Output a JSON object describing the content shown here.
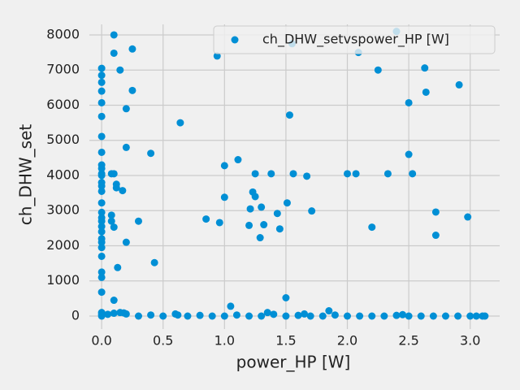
{
  "chart_data": {
    "type": "scatter",
    "xlabel": "power_HP [W]",
    "ylabel": "ch_DHW_set",
    "legend": "upper right",
    "grid": true,
    "xlim": [
      -0.1,
      3.24
    ],
    "ylim": [
      -370,
      8300
    ],
    "xticks": [
      {
        "value": 0,
        "label": "0.0"
      },
      0.5,
      {
        "value": 1,
        "label": "1.0"
      },
      1.5,
      {
        "value": 2,
        "label": "2.0"
      },
      2.5,
      {
        "value": 3,
        "label": "3.0"
      }
    ],
    "yticks": [
      0,
      1000,
      2000,
      3000,
      4000,
      5000,
      6000,
      7000,
      8000
    ],
    "series": [
      {
        "name": "ch_DHW_setvspower_HP [W]",
        "color": "#008fd5",
        "x": [
          0,
          0,
          0,
          0,
          0,
          0,
          0,
          0,
          0,
          0,
          0,
          0,
          0,
          0,
          0,
          0,
          0,
          0,
          0,
          0,
          0,
          0,
          0,
          0,
          0,
          0,
          0,
          0,
          0,
          0,
          0,
          0.1,
          0.1,
          0.15,
          0.25,
          0.25,
          0.2,
          0.2,
          0.1,
          0.08,
          0.12,
          0.12,
          0.17,
          0.08,
          0.08,
          0.1,
          0.2,
          0.3,
          0.13,
          0.43,
          0.1,
          0.4,
          0.64,
          0.94,
          1.0,
          1.11,
          1.0,
          0.85,
          0.96,
          1.05,
          1.21,
          1.23,
          1.25,
          1.25,
          1.3,
          1.32,
          1.2,
          1.29,
          1.38,
          1.43,
          1.45,
          1.51,
          1.53,
          1.56,
          1.55,
          1.67,
          1.71,
          1.5,
          2.0,
          2.07,
          2.09,
          2.25,
          2.2,
          2.33,
          2.4,
          2.5,
          2.5,
          2.53,
          2.63,
          2.64,
          2.72,
          2.72,
          2.91,
          2.98,
          1.85,
          0.05,
          0.1,
          0.15,
          0.2,
          0.3,
          0.4,
          0.5,
          0.6,
          0.7,
          0.8,
          0.9,
          1.0,
          1.1,
          1.2,
          1.3,
          1.4,
          1.5,
          1.6,
          1.7,
          1.8,
          1.9,
          2.0,
          2.1,
          2.2,
          2.3,
          2.4,
          2.5,
          2.6,
          2.7,
          2.8,
          2.9,
          3.0,
          3.05,
          3.1,
          3.12,
          1.35,
          1.65,
          2.45,
          0.62,
          0.18
        ],
        "values": [
          7050,
          6850,
          6650,
          6400,
          6070,
          5680,
          5110,
          4660,
          4300,
          4200,
          4050,
          4000,
          3800,
          3700,
          3550,
          3220,
          2950,
          2800,
          2700,
          2550,
          2400,
          2200,
          2100,
          1950,
          1700,
          1250,
          1100,
          680,
          100,
          50,
          0,
          8000,
          7480,
          7000,
          7600,
          6420,
          5900,
          4800,
          4050,
          4050,
          3750,
          3650,
          3570,
          2870,
          2700,
          2530,
          2100,
          2700,
          1380,
          1520,
          450,
          4630,
          5500,
          7400,
          4280,
          4450,
          3380,
          2760,
          2660,
          280,
          3050,
          3530,
          3400,
          4050,
          3100,
          2600,
          2580,
          2230,
          4050,
          2920,
          2480,
          3220,
          5720,
          4050,
          7750,
          3980,
          2990,
          520,
          4050,
          4050,
          7500,
          7000,
          2530,
          4050,
          8100,
          6070,
          4600,
          4050,
          7060,
          6370,
          2960,
          2300,
          6580,
          2820,
          150,
          50,
          80,
          100,
          60,
          0,
          30,
          0,
          60,
          0,
          20,
          0,
          0,
          30,
          0,
          0,
          50,
          0,
          20,
          0,
          0,
          30,
          0,
          0,
          0,
          0,
          20,
          0,
          0,
          0,
          0,
          0,
          0,
          0,
          0,
          0,
          100,
          60,
          40,
          30,
          90
        ]
      }
    ]
  }
}
